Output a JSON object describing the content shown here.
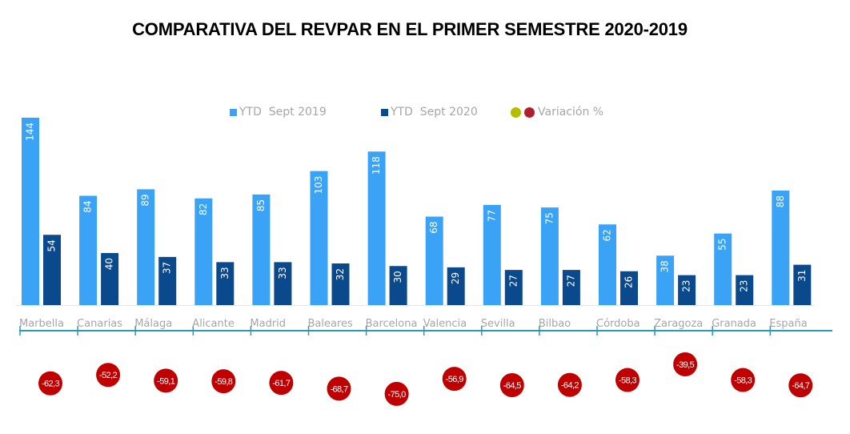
{
  "chart_data": {
    "type": "bar",
    "title": "COMPARATIVA DEL REVPAR EN EL PRIMER SEMESTRE 2020-2019",
    "xlabel": "",
    "ylabel": "",
    "ylim": [
      0,
      150
    ],
    "grid": false,
    "legend_position": "top",
    "categories": [
      "Marbella",
      "Canarias",
      "Málaga",
      "Alicante",
      "Madrid",
      "Baleares",
      "Barcelona",
      "Valencia",
      "Sevilla",
      "Bilbao",
      "Córdoba",
      "Zaragoza",
      "Granada",
      "España"
    ],
    "series": [
      {
        "name": "YTD  Sept 2019",
        "color": "#3ba3f5",
        "values": [
          144,
          84,
          89,
          82,
          85,
          103,
          118,
          68,
          77,
          75,
          62,
          38,
          55,
          88
        ]
      },
      {
        "name": "YTD  Sept 2020",
        "color": "#0a4a8c",
        "values": [
          54,
          40,
          37,
          33,
          33,
          32,
          30,
          29,
          27,
          27,
          26,
          23,
          23,
          31
        ]
      }
    ],
    "variation": {
      "name": "Variación %",
      "legend_colors": [
        "#b5bd00",
        "#b01e2f"
      ],
      "color": "#c00000",
      "values": [
        "-62,3",
        "-52,2",
        "-59,1",
        "-59,8",
        "-61,7",
        "-68,7",
        "-75,0",
        "-56,9",
        "-64,5",
        "-64,2",
        "-58,3",
        "-39,5",
        "-58,3",
        "-64,7"
      ]
    }
  }
}
